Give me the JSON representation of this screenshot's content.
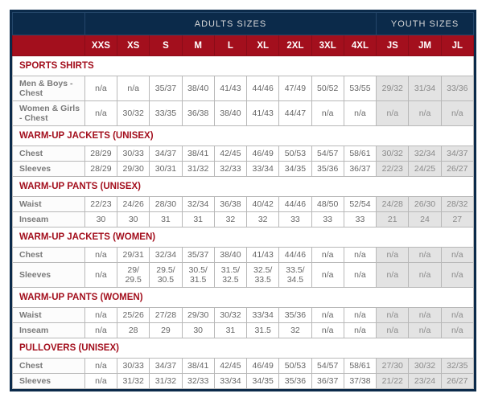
{
  "header": {
    "adults": "ADULTS SIZES",
    "youth": "YOUTH SIZES",
    "sizes_adult": [
      "XXS",
      "XS",
      "S",
      "M",
      "L",
      "XL",
      "2XL",
      "3XL",
      "4XL"
    ],
    "sizes_youth": [
      "JS",
      "JM",
      "JL"
    ]
  },
  "sections": [
    {
      "title": "SPORTS SHIRTS",
      "rows": [
        {
          "label": "Men & Boys - Chest",
          "adult": [
            "n/a",
            "n/a",
            "35/37",
            "38/40",
            "41/43",
            "44/46",
            "47/49",
            "50/52",
            "53/55"
          ],
          "youth": [
            "29/32",
            "31/34",
            "33/36"
          ]
        },
        {
          "label": "Women & Girls - Chest",
          "adult": [
            "n/a",
            "30/32",
            "33/35",
            "36/38",
            "38/40",
            "41/43",
            "44/47",
            "n/a",
            "n/a"
          ],
          "youth": [
            "n/a",
            "n/a",
            "n/a"
          ]
        }
      ]
    },
    {
      "title": "WARM-UP JACKETS (UNISEX)",
      "rows": [
        {
          "label": "Chest",
          "adult": [
            "28/29",
            "30/33",
            "34/37",
            "38/41",
            "42/45",
            "46/49",
            "50/53",
            "54/57",
            "58/61"
          ],
          "youth": [
            "30/32",
            "32/34",
            "34/37"
          ]
        },
        {
          "label": "Sleeves",
          "adult": [
            "28/29",
            "29/30",
            "30/31",
            "31/32",
            "32/33",
            "33/34",
            "34/35",
            "35/36",
            "36/37"
          ],
          "youth": [
            "22/23",
            "24/25",
            "26/27"
          ]
        }
      ]
    },
    {
      "title": "WARM-UP PANTS (UNISEX)",
      "rows": [
        {
          "label": "Waist",
          "adult": [
            "22/23",
            "24/26",
            "28/30",
            "32/34",
            "36/38",
            "40/42",
            "44/46",
            "48/50",
            "52/54"
          ],
          "youth": [
            "24/28",
            "26/30",
            "28/32"
          ]
        },
        {
          "label": "Inseam",
          "adult": [
            "30",
            "30",
            "31",
            "31",
            "32",
            "32",
            "33",
            "33",
            "33"
          ],
          "youth": [
            "21",
            "24",
            "27"
          ]
        }
      ]
    },
    {
      "title": "WARM-UP JACKETS (WOMEN)",
      "rows": [
        {
          "label": "Chest",
          "adult": [
            "n/a",
            "29/31",
            "32/34",
            "35/37",
            "38/40",
            "41/43",
            "44/46",
            "n/a",
            "n/a"
          ],
          "youth": [
            "n/a",
            "n/a",
            "n/a"
          ]
        },
        {
          "label": "Sleeves",
          "adult": [
            "n/a",
            "29/ 29.5",
            "29.5/ 30.5",
            "30.5/ 31.5",
            "31.5/ 32.5",
            "32.5/ 33.5",
            "33.5/ 34.5",
            "n/a",
            "n/a"
          ],
          "youth": [
            "n/a",
            "n/a",
            "n/a"
          ]
        }
      ]
    },
    {
      "title": "WARM-UP PANTS (WOMEN)",
      "rows": [
        {
          "label": "Waist",
          "adult": [
            "n/a",
            "25/26",
            "27/28",
            "29/30",
            "30/32",
            "33/34",
            "35/36",
            "n/a",
            "n/a"
          ],
          "youth": [
            "n/a",
            "n/a",
            "n/a"
          ]
        },
        {
          "label": "Inseam",
          "adult": [
            "n/a",
            "28",
            "29",
            "30",
            "31",
            "31.5",
            "32",
            "n/a",
            "n/a"
          ],
          "youth": [
            "n/a",
            "n/a",
            "n/a"
          ]
        }
      ]
    },
    {
      "title": "PULLOVERS (UNISEX)",
      "rows": [
        {
          "label": "Chest",
          "adult": [
            "n/a",
            "30/33",
            "34/37",
            "38/41",
            "42/45",
            "46/49",
            "50/53",
            "54/57",
            "58/61"
          ],
          "youth": [
            "27/30",
            "30/32",
            "32/35"
          ]
        },
        {
          "label": "Sleeves",
          "adult": [
            "n/a",
            "31/32",
            "31/32",
            "32/33",
            "33/34",
            "34/35",
            "35/36",
            "36/37",
            "37/38"
          ],
          "youth": [
            "21/22",
            "23/24",
            "26/27"
          ]
        }
      ]
    }
  ]
}
